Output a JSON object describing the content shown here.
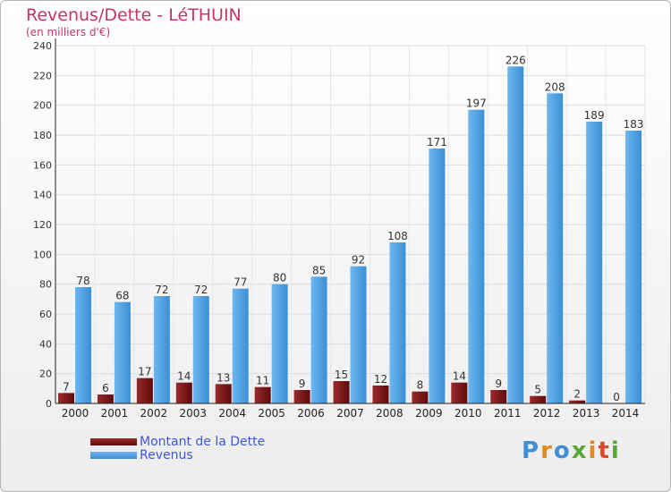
{
  "title": "Revenus/Dette - LéTHUIN",
  "subtitle": "(en milliers d'€)",
  "logo_text": "Proxiti",
  "chart_data": {
    "type": "bar",
    "title": "Revenus/Dette - LéTHUIN",
    "subtitle": "(en milliers d'€)",
    "categories": [
      "2000",
      "2001",
      "2002",
      "2003",
      "2004",
      "2005",
      "2006",
      "2007",
      "2008",
      "2009",
      "2010",
      "2011",
      "2012",
      "2013",
      "2014"
    ],
    "series": [
      {
        "name": "Montant de la Dette",
        "color": "#7a1416",
        "values": [
          7,
          6,
          17,
          14,
          13,
          11,
          9,
          15,
          12,
          8,
          14,
          9,
          5,
          2,
          0
        ]
      },
      {
        "name": "Revenus",
        "color": "#4f9fe0",
        "values": [
          78,
          68,
          72,
          72,
          77,
          80,
          85,
          92,
          108,
          171,
          197,
          226,
          208,
          189,
          183
        ]
      }
    ],
    "yticks": [
      0,
      20,
      40,
      60,
      80,
      100,
      120,
      140,
      160,
      180,
      200,
      220,
      240
    ],
    "ylim": [
      0,
      240
    ],
    "grid": true,
    "legend_position": "bottom-left"
  }
}
